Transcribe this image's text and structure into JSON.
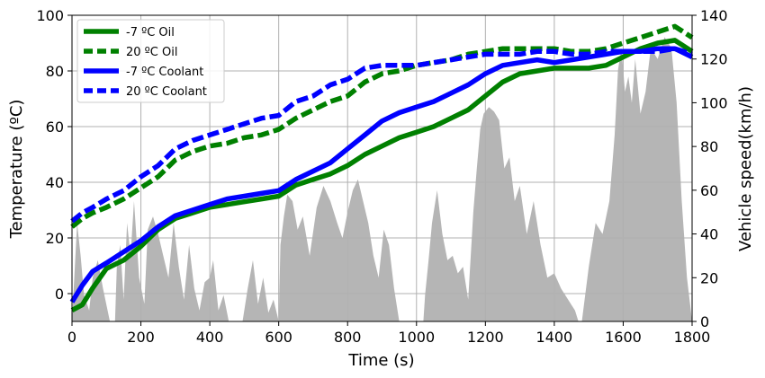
{
  "chart_data": {
    "type": "line",
    "xlabel": "Time (s)",
    "ylabel": "Temperature (ºC)",
    "y2label": "Vehicle speed(km/h)",
    "xlim": [
      0,
      1800
    ],
    "ylim": [
      -10,
      100
    ],
    "y2lim": [
      0,
      140
    ],
    "xticks": [
      "0",
      "200",
      "400",
      "600",
      "800",
      "1000",
      "1200",
      "1400",
      "1600",
      "1800"
    ],
    "yticks": [
      "0",
      "20",
      "40",
      "60",
      "80",
      "100"
    ],
    "y2ticks": [
      "0",
      "20",
      "40",
      "60",
      "80",
      "100",
      "120",
      "140"
    ],
    "grid": true,
    "legend_position": "top-left",
    "series": [
      {
        "name": "-7 ºC Oil",
        "color": "#008000",
        "style": "solid",
        "x": [
          0,
          30,
          60,
          100,
          150,
          200,
          250,
          300,
          350,
          400,
          450,
          500,
          550,
          600,
          650,
          700,
          750,
          800,
          850,
          900,
          950,
          1000,
          1050,
          1100,
          1150,
          1200,
          1250,
          1300,
          1350,
          1400,
          1450,
          1500,
          1550,
          1600,
          1650,
          1700,
          1750,
          1800
        ],
        "values": [
          -6,
          -4,
          2,
          9,
          12,
          17,
          23,
          27,
          29,
          31,
          32,
          33,
          34,
          35,
          39,
          41,
          43,
          46,
          50,
          53,
          56,
          58,
          60,
          63,
          66,
          71,
          76,
          79,
          80,
          81,
          81,
          81,
          82,
          85,
          88,
          90,
          91,
          87
        ]
      },
      {
        "name": "20 ºC Oil",
        "color": "#008000",
        "style": "dashed",
        "x": [
          0,
          30,
          60,
          100,
          150,
          200,
          250,
          300,
          350,
          400,
          450,
          500,
          550,
          600,
          650,
          700,
          750,
          800,
          850,
          900,
          950,
          1000,
          1050,
          1100,
          1150,
          1200,
          1250,
          1300,
          1350,
          1400,
          1450,
          1500,
          1550,
          1600,
          1650,
          1700,
          1750,
          1800
        ],
        "values": [
          24,
          27,
          29,
          31,
          34,
          38,
          42,
          48,
          51,
          53,
          54,
          56,
          57,
          59,
          63,
          66,
          69,
          71,
          76,
          79,
          80,
          82,
          83,
          84,
          86,
          87,
          88,
          88,
          88,
          88,
          87,
          87,
          88,
          90,
          92,
          94,
          96,
          92
        ]
      },
      {
        "name": "-7 ºC Coolant",
        "color": "#0000ff",
        "style": "solid",
        "x": [
          0,
          30,
          60,
          100,
          150,
          200,
          250,
          300,
          350,
          400,
          450,
          500,
          550,
          600,
          650,
          700,
          750,
          800,
          850,
          900,
          950,
          1000,
          1050,
          1100,
          1150,
          1200,
          1250,
          1300,
          1350,
          1400,
          1450,
          1500,
          1550,
          1600,
          1650,
          1700,
          1750,
          1800
        ],
        "values": [
          -3,
          3,
          8,
          11,
          15,
          19,
          24,
          28,
          30,
          32,
          34,
          35,
          36,
          37,
          41,
          44,
          47,
          52,
          57,
          62,
          65,
          67,
          69,
          72,
          75,
          79,
          82,
          83,
          84,
          83,
          84,
          85,
          86,
          87,
          87,
          88,
          88,
          85
        ]
      },
      {
        "name": "20 ºC Coolant",
        "color": "#0000ff",
        "style": "dashed",
        "x": [
          0,
          30,
          60,
          100,
          150,
          200,
          250,
          300,
          350,
          400,
          450,
          500,
          550,
          600,
          650,
          700,
          750,
          800,
          850,
          900,
          950,
          1000,
          1050,
          1100,
          1150,
          1200,
          1250,
          1300,
          1350,
          1400,
          1450,
          1500,
          1550,
          1600,
          1650,
          1700,
          1750,
          1800
        ],
        "values": [
          26,
          29,
          31,
          34,
          37,
          42,
          46,
          52,
          55,
          57,
          59,
          61,
          63,
          64,
          69,
          71,
          75,
          77,
          81,
          82,
          82,
          82,
          83,
          84,
          85,
          86,
          86,
          86,
          87,
          87,
          86,
          86,
          87,
          87,
          87,
          87,
          88,
          86
        ]
      }
    ],
    "speed": {
      "color": "#b5b5b5",
      "x": [
        0,
        15,
        25,
        35,
        50,
        60,
        75,
        90,
        110,
        125,
        130,
        140,
        150,
        160,
        170,
        180,
        195,
        210,
        220,
        235,
        250,
        265,
        280,
        295,
        310,
        325,
        340,
        355,
        370,
        385,
        400,
        410,
        425,
        440,
        455,
        470,
        485,
        495,
        510,
        525,
        540,
        555,
        570,
        585,
        600,
        605,
        615,
        625,
        640,
        655,
        670,
        690,
        710,
        730,
        750,
        770,
        785,
        800,
        815,
        830,
        845,
        860,
        875,
        890,
        905,
        920,
        935,
        950,
        965,
        980,
        995,
        1010,
        1020,
        1025,
        1035,
        1045,
        1060,
        1075,
        1090,
        1105,
        1120,
        1135,
        1150,
        1165,
        1175,
        1185,
        1195,
        1210,
        1225,
        1240,
        1255,
        1270,
        1285,
        1300,
        1320,
        1340,
        1360,
        1380,
        1400,
        1420,
        1440,
        1460,
        1470,
        1480,
        1500,
        1520,
        1540,
        1560,
        1575,
        1585,
        1595,
        1605,
        1615,
        1625,
        1635,
        1650,
        1665,
        1680,
        1700,
        1720,
        1740,
        1755,
        1770,
        1785,
        1800
      ],
      "values": [
        0,
        45,
        30,
        12,
        5,
        20,
        28,
        15,
        0,
        0,
        25,
        35,
        10,
        45,
        30,
        55,
        20,
        8,
        42,
        48,
        40,
        30,
        20,
        45,
        25,
        10,
        35,
        15,
        5,
        18,
        20,
        28,
        5,
        12,
        0,
        0,
        0,
        0,
        15,
        28,
        8,
        20,
        4,
        10,
        0,
        35,
        48,
        58,
        55,
        42,
        48,
        30,
        52,
        62,
        55,
        45,
        38,
        50,
        60,
        65,
        55,
        45,
        30,
        20,
        42,
        35,
        15,
        0,
        0,
        0,
        0,
        0,
        0,
        12,
        28,
        45,
        60,
        40,
        28,
        30,
        22,
        25,
        10,
        50,
        70,
        88,
        95,
        98,
        96,
        92,
        70,
        75,
        55,
        62,
        40,
        55,
        35,
        20,
        22,
        15,
        10,
        5,
        0,
        0,
        25,
        45,
        40,
        55,
        85,
        115,
        125,
        105,
        112,
        100,
        120,
        95,
        105,
        125,
        120,
        130,
        125,
        100,
        55,
        20,
        0
      ]
    }
  }
}
